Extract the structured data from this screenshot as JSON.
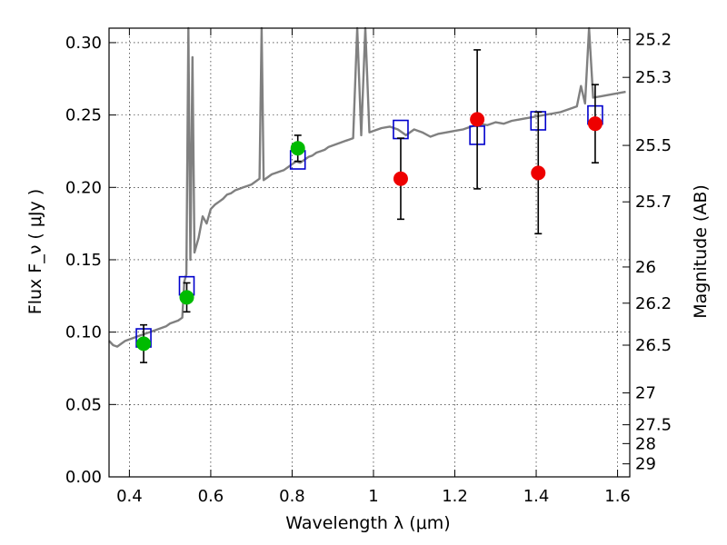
{
  "chart_data": {
    "type": "scatter",
    "xlabel": "Wavelength  λ (μm)",
    "ylabel": "Flux  F_ν  ( μJy )",
    "ylabel_right": "Magnitude (AB)",
    "xlim": [
      0.35,
      1.63
    ],
    "ylim": [
      0.0,
      0.31
    ],
    "grid": true,
    "x_ticks": [
      0.4,
      0.6,
      0.8,
      1.0,
      1.2,
      1.4,
      1.6
    ],
    "x_tick_labels": [
      "0.4",
      "0.6",
      "0.8",
      "1",
      "1.2",
      "1.4",
      "1.6"
    ],
    "y_ticks": [
      0.0,
      0.05,
      0.1,
      0.15,
      0.2,
      0.25,
      0.3
    ],
    "y_tick_labels": [
      "0.00",
      "0.05",
      "0.10",
      "0.15",
      "0.20",
      "0.25",
      "0.30"
    ],
    "right_ticks": [
      {
        "label": "25.2",
        "flux": 0.302
      },
      {
        "label": "25.3",
        "flux": 0.276
      },
      {
        "label": "25.5",
        "flux": 0.229
      },
      {
        "label": "25.7",
        "flux": 0.19
      },
      {
        "label": "26",
        "flux": 0.145
      },
      {
        "label": "26.2",
        "flux": 0.12
      },
      {
        "label": "26.5",
        "flux": 0.091
      },
      {
        "label": "27",
        "flux": 0.058
      },
      {
        "label": "27.5",
        "flux": 0.036
      },
      {
        "label": "28",
        "flux": 0.023
      },
      {
        "label": "29",
        "flux": 0.009
      }
    ],
    "colors": {
      "model": "#808080",
      "box": "#0000cc",
      "green": "#00bb00",
      "red": "#ee0000"
    },
    "model_spectrum": {
      "x": [
        0.35,
        0.36,
        0.37,
        0.38,
        0.39,
        0.4,
        0.41,
        0.42,
        0.43,
        0.44,
        0.45,
        0.46,
        0.47,
        0.48,
        0.49,
        0.5,
        0.51,
        0.52,
        0.525,
        0.53,
        0.535,
        0.54,
        0.545,
        0.55,
        0.555,
        0.56,
        0.565,
        0.57,
        0.58,
        0.59,
        0.6,
        0.61,
        0.62,
        0.63,
        0.64,
        0.65,
        0.66,
        0.67,
        0.68,
        0.69,
        0.7,
        0.71,
        0.72,
        0.725,
        0.73,
        0.74,
        0.75,
        0.76,
        0.77,
        0.78,
        0.79,
        0.8,
        0.81,
        0.82,
        0.83,
        0.84,
        0.85,
        0.86,
        0.87,
        0.88,
        0.89,
        0.9,
        0.91,
        0.92,
        0.93,
        0.94,
        0.95,
        0.96,
        0.97,
        0.98,
        0.99,
        1.0,
        1.02,
        1.04,
        1.06,
        1.08,
        1.1,
        1.12,
        1.14,
        1.16,
        1.18,
        1.2,
        1.22,
        1.24,
        1.26,
        1.28,
        1.3,
        1.32,
        1.34,
        1.36,
        1.38,
        1.4,
        1.42,
        1.44,
        1.46,
        1.48,
        1.5,
        1.51,
        1.52,
        1.53,
        1.54,
        1.56,
        1.58,
        1.6,
        1.62
      ],
      "y": [
        0.094,
        0.091,
        0.09,
        0.092,
        0.094,
        0.095,
        0.096,
        0.097,
        0.098,
        0.099,
        0.1,
        0.101,
        0.102,
        0.103,
        0.104,
        0.106,
        0.107,
        0.108,
        0.109,
        0.11,
        0.135,
        0.14,
        0.31,
        0.15,
        0.29,
        0.155,
        0.16,
        0.165,
        0.18,
        0.175,
        0.185,
        0.188,
        0.19,
        0.192,
        0.195,
        0.196,
        0.198,
        0.199,
        0.2,
        0.201,
        0.202,
        0.204,
        0.206,
        0.31,
        0.205,
        0.207,
        0.209,
        0.21,
        0.211,
        0.212,
        0.214,
        0.216,
        0.218,
        0.217,
        0.219,
        0.221,
        0.222,
        0.224,
        0.225,
        0.226,
        0.228,
        0.229,
        0.23,
        0.231,
        0.232,
        0.233,
        0.234,
        0.31,
        0.236,
        0.31,
        0.238,
        0.239,
        0.241,
        0.242,
        0.24,
        0.236,
        0.24,
        0.238,
        0.235,
        0.237,
        0.238,
        0.239,
        0.24,
        0.242,
        0.244,
        0.243,
        0.245,
        0.244,
        0.246,
        0.247,
        0.248,
        0.249,
        0.25,
        0.251,
        0.252,
        0.254,
        0.256,
        0.27,
        0.258,
        0.31,
        0.262,
        0.263,
        0.264,
        0.265,
        0.266
      ]
    },
    "filter_boxes": [
      {
        "x": 0.435,
        "y": 0.096
      },
      {
        "x": 0.541,
        "y": 0.132
      },
      {
        "x": 0.814,
        "y": 0.219
      },
      {
        "x": 1.067,
        "y": 0.24
      },
      {
        "x": 1.255,
        "y": 0.236
      },
      {
        "x": 1.405,
        "y": 0.246
      },
      {
        "x": 1.545,
        "y": 0.25
      }
    ],
    "measurements": [
      {
        "x": 0.435,
        "y": 0.092,
        "yerr": 0.013,
        "color": "green"
      },
      {
        "x": 0.541,
        "y": 0.124,
        "yerr": 0.01,
        "color": "green"
      },
      {
        "x": 0.814,
        "y": 0.227,
        "yerr": 0.009,
        "color": "green"
      },
      {
        "x": 1.067,
        "y": 0.206,
        "yerr": 0.028,
        "color": "red"
      },
      {
        "x": 1.255,
        "y": 0.247,
        "yerr": 0.048,
        "color": "red"
      },
      {
        "x": 1.405,
        "y": 0.21,
        "yerr": 0.042,
        "color": "red"
      },
      {
        "x": 1.545,
        "y": 0.244,
        "yerr": 0.027,
        "color": "red"
      }
    ]
  }
}
